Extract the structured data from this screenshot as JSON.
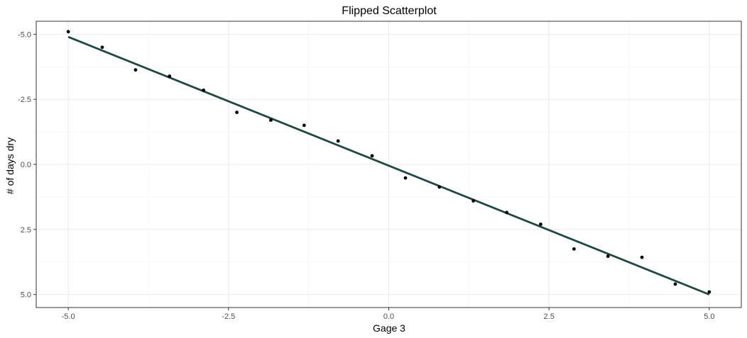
{
  "chart_data": {
    "type": "scatter",
    "title": "Flipped Scatterplot",
    "xlabel": "Gage 3",
    "ylabel": "# of days dry",
    "xlim": [
      -5.5,
      5.5
    ],
    "ylim": [
      -5.5,
      5.5
    ],
    "y_reversed": true,
    "grid": true,
    "x_ticks": [
      -5.0,
      -2.5,
      0.0,
      2.5,
      5.0
    ],
    "x_tick_labels": [
      "-5.0",
      "-2.5",
      "0.0",
      "2.5",
      "5.0"
    ],
    "y_ticks": [
      -5.0,
      -2.5,
      0.0,
      2.5,
      5.0
    ],
    "y_tick_labels": [
      "-5.0",
      "-2.5",
      "0.0",
      "2.5",
      "5.0"
    ],
    "points": {
      "x": [
        -5.0,
        -4.47,
        -3.95,
        -3.42,
        -2.89,
        -2.37,
        -1.84,
        -1.32,
        -0.79,
        -0.26,
        0.26,
        0.79,
        1.32,
        1.84,
        2.37,
        2.89,
        3.42,
        3.95,
        4.47,
        5.0
      ],
      "y": [
        -5.1,
        -4.5,
        -3.63,
        -3.39,
        -2.85,
        -2.0,
        -1.7,
        -1.5,
        -0.9,
        -0.33,
        0.52,
        0.87,
        1.4,
        1.85,
        2.3,
        3.25,
        3.53,
        3.57,
        4.6,
        4.9
      ]
    },
    "fit_line": {
      "x": [
        -5.0,
        5.0
      ],
      "y": [
        -4.9,
        5.0
      ]
    },
    "colors": {
      "points": "#000000",
      "fit_line": "#1f4744",
      "panel_border": "#333333",
      "grid_major": "#ebebeb",
      "grid_minor": "#f4f4f4"
    }
  }
}
